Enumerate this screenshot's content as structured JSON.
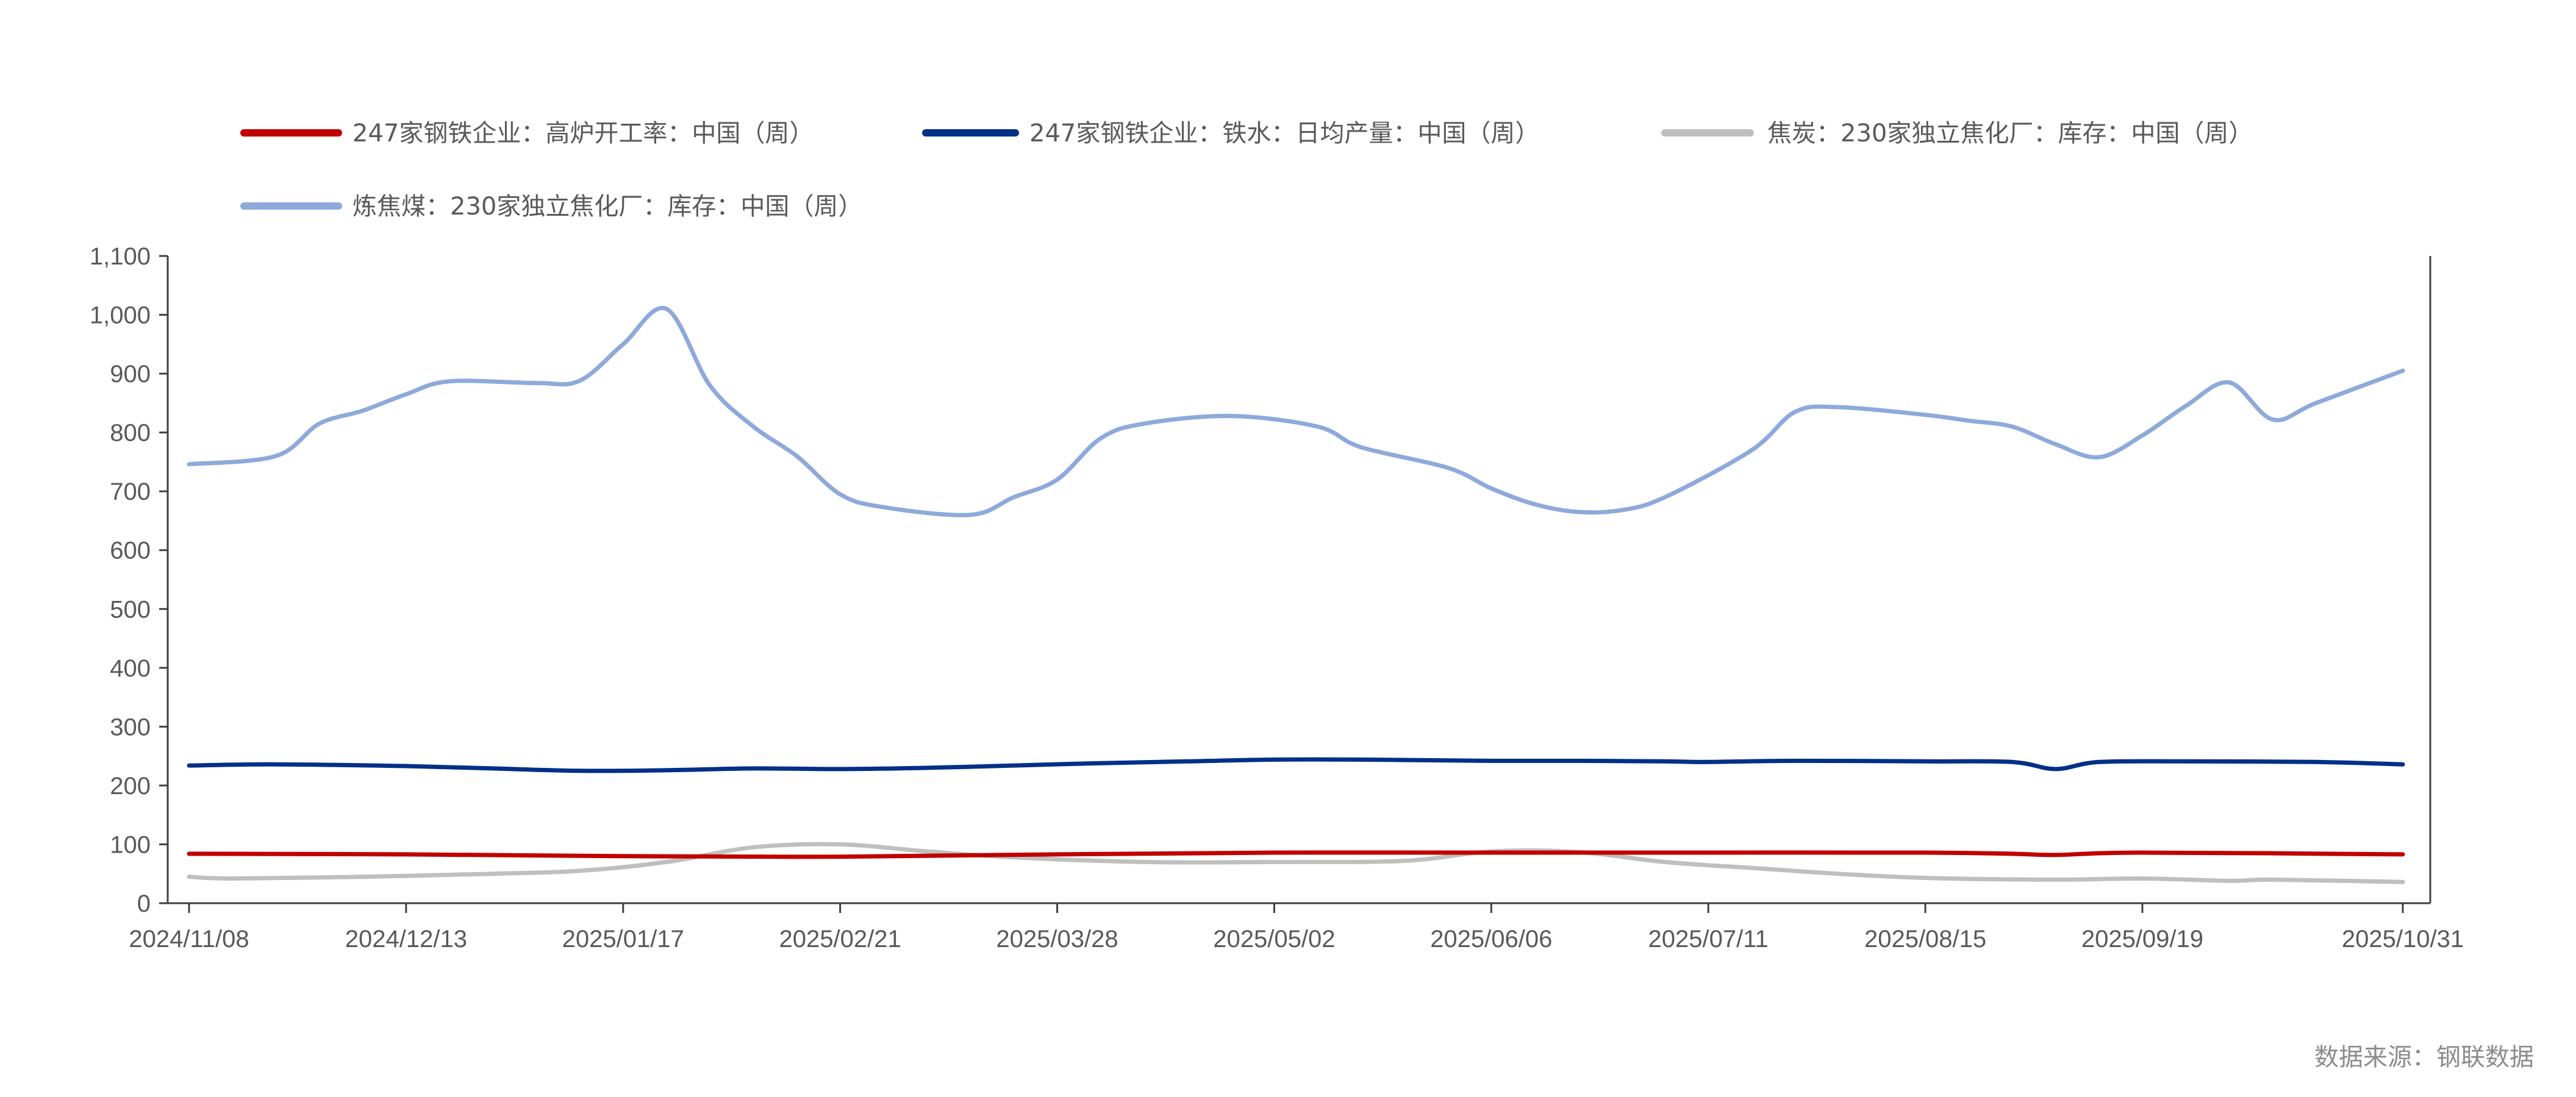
{
  "source": "数据来源：钢联数据",
  "chart_data": {
    "type": "line",
    "title": "",
    "xlabel": "",
    "ylabel": "",
    "x_range": [
      "2024-11-08",
      "2025-10-31"
    ],
    "ylim": [
      0,
      1100
    ],
    "y_ticks": [
      0,
      100,
      200,
      300,
      400,
      500,
      600,
      700,
      800,
      900,
      1000,
      1100
    ],
    "y_tick_labels": [
      "0",
      "100",
      "200",
      "300",
      "400",
      "500",
      "600",
      "700",
      "800",
      "900",
      "1,000",
      "1,100"
    ],
    "x_ticks": [
      "2024-11-08",
      "2024-12-13",
      "2025-01-17",
      "2025-02-21",
      "2025-03-28",
      "2025-05-02",
      "2025-06-06",
      "2025-07-11",
      "2025-08-15",
      "2025-09-19",
      "2025-10-31"
    ],
    "x_tick_labels": [
      "2024/11/08",
      "2024/12/13",
      "2025/01/17",
      "2025/02/21",
      "2025/03/28",
      "2025/05/02",
      "2025/06/06",
      "2025/07/11",
      "2025/08/15",
      "2025/09/19",
      "2025/10/31"
    ],
    "grid": false,
    "legend_position": "top",
    "series": [
      {
        "name": "247家钢铁企业：高炉开工率：中国（周）",
        "color": "#c00000",
        "points": [
          [
            "2024-11-08",
            84
          ],
          [
            "2024-12-13",
            83
          ],
          [
            "2025-01-17",
            80
          ],
          [
            "2025-02-21",
            79
          ],
          [
            "2025-03-28",
            83
          ],
          [
            "2025-05-02",
            86
          ],
          [
            "2025-06-06",
            86
          ],
          [
            "2025-07-11",
            86
          ],
          [
            "2025-08-15",
            86
          ],
          [
            "2025-08-29",
            84
          ],
          [
            "2025-09-05",
            82
          ],
          [
            "2025-09-19",
            86
          ],
          [
            "2025-10-31",
            83
          ]
        ]
      },
      {
        "name": "247家钢铁企业：铁水：日均产量：中国（周）",
        "color": "#003087",
        "points": [
          [
            "2024-11-08",
            234
          ],
          [
            "2024-11-22",
            236
          ],
          [
            "2024-12-13",
            233
          ],
          [
            "2024-12-27",
            229
          ],
          [
            "2025-01-10",
            225
          ],
          [
            "2025-01-24",
            226
          ],
          [
            "2025-02-07",
            229
          ],
          [
            "2025-02-21",
            228
          ],
          [
            "2025-03-07",
            230
          ],
          [
            "2025-03-21",
            234
          ],
          [
            "2025-04-04",
            238
          ],
          [
            "2025-04-18",
            241
          ],
          [
            "2025-05-02",
            244
          ],
          [
            "2025-05-16",
            244
          ],
          [
            "2025-06-06",
            242
          ],
          [
            "2025-06-20",
            242
          ],
          [
            "2025-07-04",
            241
          ],
          [
            "2025-07-11",
            240
          ],
          [
            "2025-07-25",
            242
          ],
          [
            "2025-08-15",
            241
          ],
          [
            "2025-08-29",
            240
          ],
          [
            "2025-09-05",
            228
          ],
          [
            "2025-09-12",
            240
          ],
          [
            "2025-09-26",
            241
          ],
          [
            "2025-10-17",
            240
          ],
          [
            "2025-10-31",
            236
          ]
        ]
      },
      {
        "name": "焦炭：230家独立焦化厂：库存：中国（周）",
        "color": "#bfbfbf",
        "points": [
          [
            "2024-11-08",
            45
          ],
          [
            "2024-11-15",
            42
          ],
          [
            "2024-12-06",
            45
          ],
          [
            "2024-12-27",
            50
          ],
          [
            "2025-01-10",
            55
          ],
          [
            "2025-01-24",
            70
          ],
          [
            "2025-02-07",
            95
          ],
          [
            "2025-02-21",
            100
          ],
          [
            "2025-03-07",
            88
          ],
          [
            "2025-03-21",
            78
          ],
          [
            "2025-04-11",
            70
          ],
          [
            "2025-05-02",
            70
          ],
          [
            "2025-05-23",
            72
          ],
          [
            "2025-06-06",
            88
          ],
          [
            "2025-06-20",
            87
          ],
          [
            "2025-07-04",
            70
          ],
          [
            "2025-07-18",
            60
          ],
          [
            "2025-08-01",
            50
          ],
          [
            "2025-08-15",
            43
          ],
          [
            "2025-09-05",
            40
          ],
          [
            "2025-09-19",
            42
          ],
          [
            "2025-10-03",
            38
          ],
          [
            "2025-10-10",
            40
          ],
          [
            "2025-10-31",
            36
          ]
        ]
      },
      {
        "name": "炼焦煤：230家独立焦化厂：库存：中国（周）",
        "color": "#8ea9db",
        "points": [
          [
            "2024-11-08",
            746
          ],
          [
            "2024-11-22",
            760
          ],
          [
            "2024-11-29",
            815
          ],
          [
            "2024-12-06",
            837
          ],
          [
            "2024-12-13",
            865
          ],
          [
            "2024-12-20",
            887
          ],
          [
            "2025-01-03",
            884
          ],
          [
            "2025-01-10",
            888
          ],
          [
            "2025-01-17",
            950
          ],
          [
            "2025-01-24",
            1010
          ],
          [
            "2025-01-31",
            880
          ],
          [
            "2025-02-07",
            810
          ],
          [
            "2025-02-14",
            760
          ],
          [
            "2025-02-21",
            695
          ],
          [
            "2025-02-28",
            673
          ],
          [
            "2025-03-14",
            660
          ],
          [
            "2025-03-21",
            690
          ],
          [
            "2025-03-28",
            720
          ],
          [
            "2025-04-04",
            790
          ],
          [
            "2025-04-11",
            815
          ],
          [
            "2025-04-25",
            828
          ],
          [
            "2025-05-09",
            810
          ],
          [
            "2025-05-16",
            775
          ],
          [
            "2025-05-30",
            740
          ],
          [
            "2025-06-06",
            705
          ],
          [
            "2025-06-13",
            678
          ],
          [
            "2025-06-20",
            665
          ],
          [
            "2025-06-27",
            668
          ],
          [
            "2025-07-04",
            690
          ],
          [
            "2025-07-18",
            770
          ],
          [
            "2025-07-25",
            835
          ],
          [
            "2025-08-01",
            843
          ],
          [
            "2025-08-15",
            830
          ],
          [
            "2025-08-22",
            820
          ],
          [
            "2025-08-29",
            810
          ],
          [
            "2025-09-05",
            780
          ],
          [
            "2025-09-12",
            758
          ],
          [
            "2025-09-19",
            795
          ],
          [
            "2025-09-26",
            845
          ],
          [
            "2025-10-03",
            885
          ],
          [
            "2025-10-10",
            822
          ],
          [
            "2025-10-17",
            850
          ],
          [
            "2025-10-31",
            905
          ]
        ]
      }
    ]
  }
}
